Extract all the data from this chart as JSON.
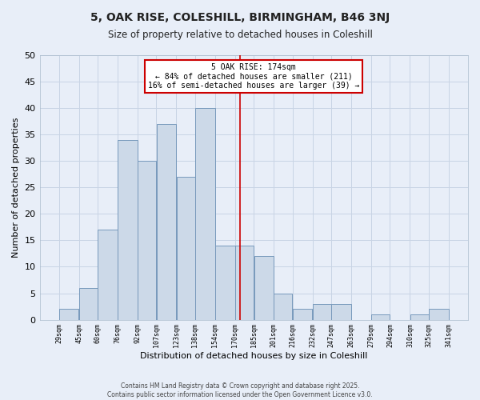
{
  "title": "5, OAK RISE, COLESHILL, BIRMINGHAM, B46 3NJ",
  "subtitle": "Size of property relative to detached houses in Coleshill",
  "xlabel": "Distribution of detached houses by size in Coleshill",
  "ylabel": "Number of detached properties",
  "bin_edges": [
    29,
    45,
    60,
    76,
    92,
    107,
    123,
    138,
    154,
    170,
    185,
    201,
    216,
    232,
    247,
    263,
    279,
    294,
    310,
    325,
    341
  ],
  "bin_counts": [
    2,
    6,
    17,
    34,
    30,
    37,
    27,
    40,
    14,
    14,
    12,
    5,
    2,
    3,
    3,
    0,
    1,
    0,
    1,
    2
  ],
  "bar_color": "#ccd9e8",
  "bar_edge_color": "#7799bb",
  "property_size": 174,
  "annotation_line1": "5 OAK RISE: 174sqm",
  "annotation_line2": "← 84% of detached houses are smaller (211)",
  "annotation_line3": "16% of semi-detached houses are larger (39) →",
  "annotation_box_color": "#ffffff",
  "annotation_box_edge_color": "#cc0000",
  "vline_color": "#cc0000",
  "ylim": [
    0,
    50
  ],
  "yticks": [
    0,
    5,
    10,
    15,
    20,
    25,
    30,
    35,
    40,
    45,
    50
  ],
  "grid_color": "#c8d4e4",
  "background_color": "#e8eef8",
  "footer_line1": "Contains HM Land Registry data © Crown copyright and database right 2025.",
  "footer_line2": "Contains public sector information licensed under the Open Government Licence v3.0."
}
